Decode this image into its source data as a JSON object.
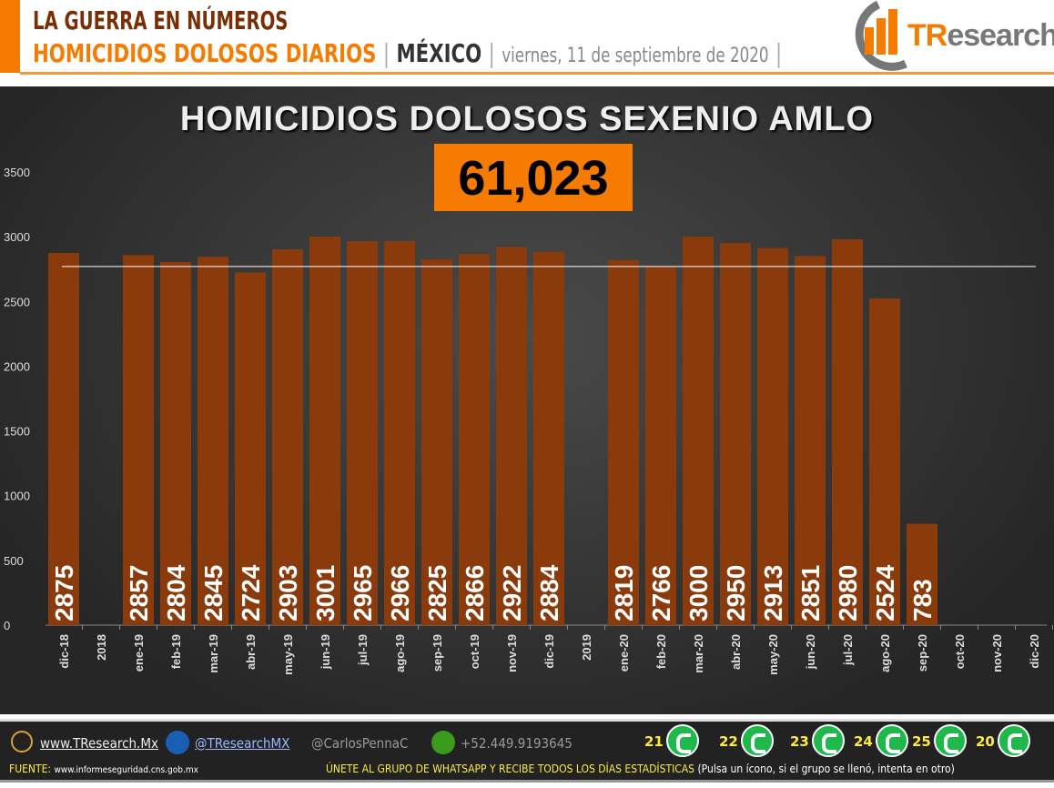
{
  "header": {
    "line1": "LA GUERRA EN NÚMEROS",
    "line2_a": "HOMICIDIOS DOLOSOS DIARIOS",
    "sep": "|",
    "country": "MÉXICO",
    "date": "viernes, 11 de septiembre de 2020",
    "logo_text_a": "TR",
    "logo_text_b": "esearch"
  },
  "total": "61,023",
  "chart_data": {
    "type": "bar",
    "title": "HOMICIDIOS DOLOSOS SEXENIO AMLO",
    "categories": [
      "dic-18",
      "2018",
      "ene-19",
      "feb-19",
      "mar-19",
      "abr-19",
      "may-19",
      "jun-19",
      "jul-19",
      "ago-19",
      "sep-19",
      "oct-19",
      "nov-19",
      "dic-19",
      "2019",
      "ene-20",
      "feb-20",
      "mar-20",
      "abr-20",
      "may-20",
      "jun-20",
      "jul-20",
      "ago-20",
      "sep-20",
      "oct-20",
      "nov-20",
      "dic-20"
    ],
    "values": [
      2875,
      null,
      2857,
      2804,
      2845,
      2724,
      2903,
      3001,
      2965,
      2966,
      2825,
      2866,
      2922,
      2884,
      null,
      2819,
      2766,
      3000,
      2950,
      2913,
      2851,
      2980,
      2524,
      783,
      null,
      null,
      null
    ],
    "ylim": [
      0,
      3500
    ],
    "yticks": [
      0,
      500,
      1000,
      1500,
      2000,
      2500,
      3000,
      3500
    ],
    "reference_line": 2770,
    "grid": false,
    "legend": "none",
    "bar_color": "#8b3a0c"
  },
  "footer": {
    "website": "www.TResearch.Mx",
    "twitter": "@TResearchMX",
    "user": "@CarlosPennaC",
    "phone": "+52.449.9193645",
    "source_label": "FUENTE:",
    "source": "www.informeseguridad.cns.gob.mx",
    "cta": "ÚNETE AL GRUPO DE WHATSAPP Y RECIBE TODOS LOS DÍAS ESTADÍSTICAS",
    "cta_note": "(Pulsa un ícono, si el grupo se llenó, intenta en otro)",
    "groups": [
      "21",
      "22",
      "23",
      "24",
      "25",
      "20"
    ]
  }
}
